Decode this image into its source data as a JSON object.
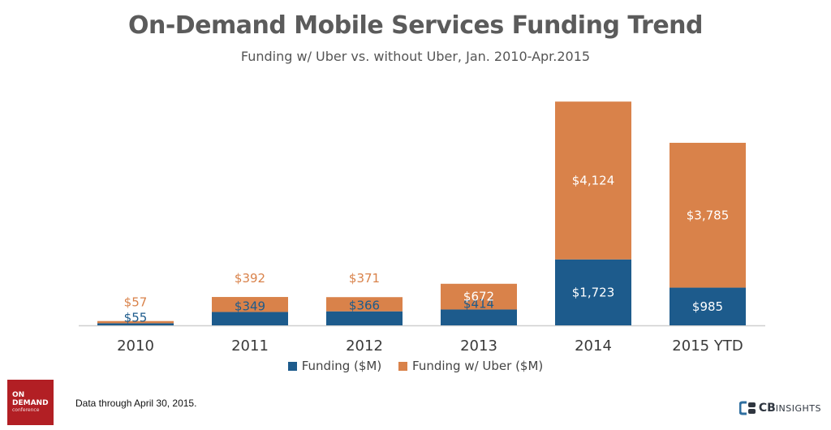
{
  "colors": {
    "funding": "#1d5b8c",
    "uber": "#d9824a",
    "axis": "#cfcfcf",
    "label_light": "#ffffff"
  },
  "legend": {
    "funding_label": "Funding ($M)",
    "uber_label": "Funding w/ Uber ($M)"
  },
  "footnote": "Data through April 30, 2015.",
  "logos": {
    "left_line1": "ON",
    "left_line2": "DEMAND",
    "left_line3": "conference",
    "right_cb": "CB",
    "right_insights": "INSIGHTS"
  },
  "chart_data": {
    "type": "bar",
    "stacked": true,
    "title": "On-Demand Mobile Services Funding Trend",
    "subtitle": "Funding w/ Uber vs. without Uber, Jan. 2010-Apr.2015",
    "categories": [
      "2010",
      "2011",
      "2012",
      "2013",
      "2014",
      "2015 YTD"
    ],
    "series": [
      {
        "name": "Funding ($M)",
        "values": [
          55,
          349,
          366,
          414,
          1723,
          985
        ],
        "labels": [
          "$55",
          "$349",
          "$366",
          "$414",
          "$1,723",
          "$985"
        ]
      },
      {
        "name": "Funding w/ Uber ($M)",
        "values": [
          57,
          392,
          371,
          672,
          4124,
          3785
        ],
        "labels": [
          "$57",
          "$392",
          "$371",
          "$672",
          "$4,124",
          "$3,785"
        ]
      }
    ],
    "ylim": [
      0,
      6000
    ],
    "grid": false,
    "legend": "bottom-center"
  }
}
